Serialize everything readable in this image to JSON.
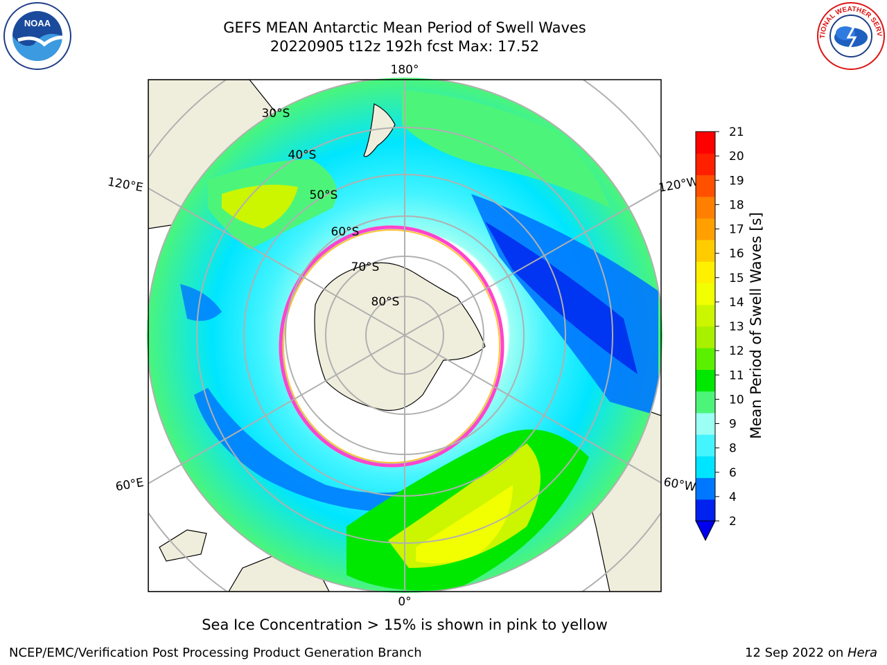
{
  "title": {
    "line1": "GEFS MEAN Antarctic Mean Period of Swell Waves",
    "line2": "20220905 t12z 192h fcst   Max: 17.52"
  },
  "logos": {
    "left": "noaa-logo",
    "right": "national-weather-service-logo",
    "left_text": "NOAA",
    "right_text": "NATIONAL WEATHER SERVICE"
  },
  "map": {
    "projection": "south-polar-stereographic",
    "longitude_labels": [
      "180°",
      "120°E",
      "120°W",
      "60°E",
      "60°W",
      "0°"
    ],
    "latitude_labels": [
      "30°S",
      "40°S",
      "50°S",
      "60°S",
      "70°S",
      "80°S"
    ],
    "colors": {
      "land": "#efeedc",
      "ocean_missing": "#ffffff",
      "grid": "#b0b0b0",
      "ice_edge": [
        "#ff44cc",
        "#ffc030"
      ]
    }
  },
  "colorbar": {
    "label": "Mean Period of Swell Waves [s]",
    "ticks": [
      "2",
      "4",
      "6",
      "8",
      "9",
      "10",
      "11",
      "12",
      "13",
      "14",
      "15",
      "16",
      "17",
      "18",
      "19",
      "20",
      "21"
    ],
    "colors": [
      "#0022ee",
      "#0077ff",
      "#00e5ff",
      "#44f4ff",
      "#9cfff4",
      "#4cf57a",
      "#00e800",
      "#5bf000",
      "#a8f000",
      "#ccf500",
      "#f2ff00",
      "#fff000",
      "#ffcc00",
      "#ffa000",
      "#ff8000",
      "#ff5000",
      "#ff2000",
      "#ff0000"
    ],
    "under_color": "#0000ee"
  },
  "captions": {
    "ice": "Sea Ice Concentration > 15% is shown in pink to yellow",
    "footer_left": "NCEP/EMC/Verification Post Processing Product Generation Branch",
    "footer_date": "12 Sep 2022 on ",
    "footer_host": "Hera"
  }
}
